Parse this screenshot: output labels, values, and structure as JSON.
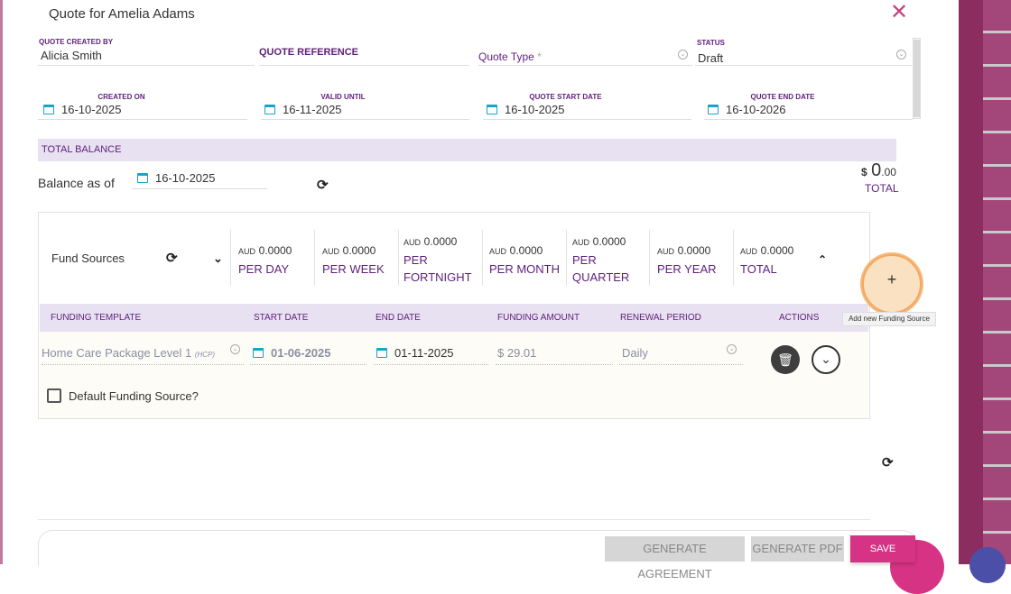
{
  "title": "Quote for Amelia Adams",
  "header": {
    "created_by_label": "QUOTE CREATED BY",
    "created_by_value": "Alicia Smith",
    "reference_label": "QUOTE REFERENCE",
    "quote_type_label": "Quote Type",
    "quote_type_required": "*",
    "status_label": "STATUS",
    "status_value": "Draft"
  },
  "dates": {
    "created_on_label": "CREATED ON",
    "created_on_value": "16-10-2025",
    "valid_until_label": "VALID UNTIL",
    "valid_until_value": "16-11-2025",
    "start_label": "QUOTE START DATE",
    "start_value": "16-10-2025",
    "end_label": "QUOTE END DATE",
    "end_value": "16-10-2026"
  },
  "balance": {
    "section_label": "TOTAL BALANCE",
    "as_of_label": "Balance as of",
    "as_of_value": "16-10-2025",
    "currency": "$",
    "amount_whole": "0",
    "amount_cents": ".00",
    "total_label": "TOTAL"
  },
  "fund_sources": {
    "label": "Fund Sources",
    "stats": [
      {
        "aud": "AUD",
        "amount": "0.0000",
        "line1": "PER DAY",
        "line2": ""
      },
      {
        "aud": "AUD",
        "amount": "0.0000",
        "line1": "PER WEEK",
        "line2": ""
      },
      {
        "aud": "AUD",
        "amount": "0.0000",
        "line1": "PER",
        "line2": "FORTNIGHT"
      },
      {
        "aud": "AUD",
        "amount": "0.0000",
        "line1": "PER MONTH",
        "line2": ""
      },
      {
        "aud": "AUD",
        "amount": "0.0000",
        "line1": "PER",
        "line2": "QUARTER"
      },
      {
        "aud": "AUD",
        "amount": "0.0000",
        "line1": "PER YEAR",
        "line2": ""
      },
      {
        "aud": "AUD",
        "amount": "0.0000",
        "line1": "TOTAL",
        "line2": ""
      }
    ]
  },
  "table": {
    "columns": [
      "FUNDING TEMPLATE",
      "START DATE",
      "END DATE",
      "FUNDING AMOUNT",
      "RENEWAL PERIOD",
      "ACTIONS"
    ],
    "row": {
      "template": "Home Care Package Level 1",
      "template_tag": "(HCP)",
      "start": "01-06-2025",
      "end": "01-11-2025",
      "amount": "$ 29.01",
      "renewal": "Daily"
    },
    "default_label": "Default Funding Source?"
  },
  "fab": {
    "plus": "+",
    "tooltip": "Add new Funding Source"
  },
  "footer": {
    "generate_agreement": "GENERATE AGREEMENT",
    "generate_pdf": "GENERATE PDF",
    "save": "SAVE"
  },
  "icons": {
    "close": "close-icon",
    "calendar": "calendar-icon",
    "sync": "sync-icon",
    "chevron": "chevron-down-icon",
    "delete": "trash-icon",
    "add": "plus-icon"
  },
  "colors": {
    "accent": "#d63384",
    "label_purple": "#5e1f7a",
    "header_bg": "#e8e1f2",
    "calendar": "#1aa3c8",
    "fab": "#f6b26b"
  }
}
